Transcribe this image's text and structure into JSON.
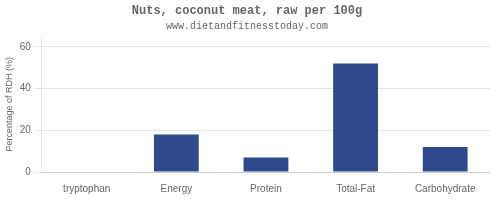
{
  "chart_data": {
    "type": "bar",
    "title": "Nuts, coconut meat, raw per 100g",
    "subtitle": "www.dietandfitnesstoday.com",
    "categories": [
      "tryptophan",
      "Energy",
      "Protein",
      "Total-Fat",
      "Carbohydrate"
    ],
    "values": [
      0,
      18,
      7,
      52,
      12
    ],
    "color": "#2e4a8c",
    "ylabel": "Percentage of RDH (%)",
    "ylim": [
      0,
      65
    ],
    "yticks": [
      0,
      20,
      40,
      60
    ],
    "grid": true
  }
}
